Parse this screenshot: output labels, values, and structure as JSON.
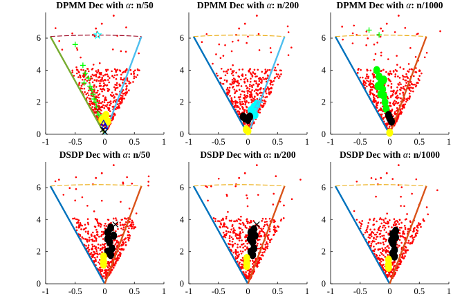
{
  "figure": {
    "layout": "2x3",
    "description_colors": {
      "left_boundary": "#0072BD",
      "right_boundary_orange": "#D95319",
      "right_boundary_cyan": "#4DBEEE",
      "top_arc_orange": "#EDB120",
      "top_arc_purple": "#A2142F",
      "green_boundary": "#77AC30",
      "data_points": "#FF0000",
      "cluster_yellow": "#FFFF00",
      "cluster_black": "#000000",
      "cluster_green": "#00FF00",
      "cluster_cyan": "#00FFFF"
    }
  },
  "chart_data": [
    {
      "type": "scatter",
      "title_prefix": "DPMM Dec with ",
      "title_symbol": "α",
      "title_suffix": ": n/50",
      "xlim": [
        -1,
        1
      ],
      "ylim": [
        0,
        7.6
      ],
      "xticks": [
        -1,
        -0.5,
        0,
        0.5,
        1
      ],
      "xtick_labels": [
        "-1",
        "-0.5",
        "0",
        "0.5",
        "1"
      ],
      "yticks": [
        0,
        2,
        4,
        6
      ],
      "ytick_labels": [
        "0",
        "2",
        "4",
        "6"
      ],
      "cone": {
        "left": [
          -0.92,
          6.1
        ],
        "right": [
          0.62,
          6.1
        ],
        "left_color": "#77AC30",
        "right_color": "#4DBEEE",
        "arc_color": "#A2142F"
      },
      "cluster_sets": [
        {
          "marker": "+",
          "color": "#00FF00",
          "points": [
            [
              -0.5,
              5.6
            ],
            [
              -0.37,
              4.3
            ],
            [
              -0.33,
              3.8
            ],
            [
              -0.28,
              3.5
            ],
            [
              -0.35,
              3.2
            ],
            [
              -0.25,
              3.0
            ],
            [
              -0.22,
              2.8
            ],
            [
              -0.2,
              2.5
            ],
            [
              -0.18,
              2.2
            ],
            [
              -0.15,
              2.0
            ],
            [
              -0.14,
              1.7
            ],
            [
              -0.12,
              1.4
            ],
            [
              -0.1,
              1.2
            ]
          ]
        },
        {
          "marker": "*",
          "color": "#00FFFF",
          "points": [
            [
              -0.12,
              6.2
            ]
          ]
        },
        {
          "marker": "x",
          "color": "#CC0000",
          "points": [
            [
              -0.12,
              1.5
            ]
          ]
        },
        {
          "marker": "blob",
          "color": "#FFFF00",
          "points": [
            [
              -0.02,
              1.0
            ],
            [
              0.02,
              1.2
            ],
            [
              -0.05,
              0.9
            ],
            [
              0.05,
              0.8
            ]
          ]
        },
        {
          "marker": "^",
          "color": "#0000CC",
          "points": [
            [
              -0.02,
              0.7
            ],
            [
              0.0,
              0.5
            ]
          ]
        },
        {
          "marker": "x",
          "color": "#000000",
          "points": [
            [
              -0.03,
              0.3
            ],
            [
              0.0,
              0.15
            ]
          ]
        }
      ]
    },
    {
      "type": "scatter",
      "title_prefix": "DPMM Dec with ",
      "title_symbol": "α",
      "title_suffix": ": n/200",
      "xlim": [
        -1,
        1
      ],
      "ylim": [
        0,
        7.6
      ],
      "xticks": [
        -1,
        -0.5,
        0,
        0.5,
        1
      ],
      "xtick_labels": [
        "-1",
        "-0.5",
        "0",
        "0.5",
        "1"
      ],
      "yticks": [
        0,
        2,
        4,
        6
      ],
      "ytick_labels": [
        "0",
        "2",
        "4",
        "6"
      ],
      "cone": {
        "left": [
          -0.92,
          6.1
        ],
        "right": [
          0.62,
          6.1
        ],
        "left_color": "#0072BD",
        "right_color": "#4DBEEE",
        "arc_color": "#EDB120"
      },
      "cluster_sets": [
        {
          "marker": "blob",
          "color": "#00FFFF",
          "points": [
            [
              0.05,
              1.5
            ],
            [
              0.1,
              1.7
            ],
            [
              0.15,
              1.9
            ],
            [
              0.08,
              1.3
            ],
            [
              0.12,
              1.2
            ]
          ]
        },
        {
          "marker": "^",
          "color": "#4DBEEE",
          "points": [
            [
              0.2,
              2.1
            ],
            [
              0.16,
              1.8
            ]
          ]
        },
        {
          "marker": "blob",
          "color": "#000000",
          "points": [
            [
              -0.05,
              1.0
            ],
            [
              0.0,
              0.9
            ],
            [
              -0.08,
              1.1
            ],
            [
              0.03,
              1.1
            ]
          ]
        },
        {
          "marker": "blob",
          "color": "#FFFF00",
          "points": [
            [
              -0.03,
              0.3
            ],
            [
              0.0,
              0.2
            ]
          ]
        }
      ]
    },
    {
      "type": "scatter",
      "title_prefix": "DPMM Dec with ",
      "title_symbol": "α",
      "title_suffix": ": n/1000",
      "xlim": [
        -1,
        1
      ],
      "ylim": [
        0,
        7.6
      ],
      "xticks": [
        -1,
        -0.5,
        0,
        0.5,
        1
      ],
      "xtick_labels": [
        "-1",
        "-0.5",
        "0",
        "0.5",
        "1"
      ],
      "yticks": [
        0,
        2,
        4,
        6
      ],
      "ytick_labels": [
        "0",
        "2",
        "4",
        "6"
      ],
      "cone": {
        "left": [
          -0.92,
          6.1
        ],
        "right": [
          0.62,
          6.1
        ],
        "left_color": "#0072BD",
        "right_color": "#D95319",
        "arc_color": "#EDB120"
      },
      "cluster_sets": [
        {
          "marker": "+",
          "color": "#00FF00",
          "points": [
            [
              -0.35,
              6.5
            ],
            [
              -0.18,
              6.2
            ]
          ]
        },
        {
          "marker": "blob",
          "color": "#00FF00",
          "points": [
            [
              -0.22,
              4.0
            ],
            [
              -0.18,
              3.6
            ],
            [
              -0.15,
              3.2
            ],
            [
              -0.12,
              2.8
            ],
            [
              -0.1,
              2.4
            ],
            [
              -0.08,
              2.0
            ],
            [
              -0.06,
              1.6
            ],
            [
              -0.15,
              2.5
            ],
            [
              -0.2,
              3.0
            ],
            [
              -0.1,
              3.4
            ]
          ]
        },
        {
          "marker": "blob",
          "color": "#000000",
          "points": [
            [
              0.0,
              1.0
            ],
            [
              0.03,
              0.8
            ],
            [
              -0.02,
              1.2
            ]
          ]
        },
        {
          "marker": "blob",
          "color": "#FFFF00",
          "points": [
            [
              0.0,
              0.1
            ]
          ]
        }
      ]
    },
    {
      "type": "scatter",
      "title_prefix": "DSDP Dec with ",
      "title_symbol": "α",
      "title_suffix": ": n/50",
      "xlim": [
        -1,
        1
      ],
      "ylim": [
        0,
        7.6
      ],
      "xticks": [
        -1,
        -0.5,
        0,
        0.5,
        1
      ],
      "xtick_labels": [
        "-1",
        "-0.5",
        "0",
        "0.5",
        "1"
      ],
      "yticks": [
        0,
        2,
        4,
        6
      ],
      "ytick_labels": [
        "0",
        "2",
        "4",
        "6"
      ],
      "cone": {
        "left": [
          -0.92,
          6.1
        ],
        "right": [
          0.62,
          6.1
        ],
        "left_color": "#0072BD",
        "right_color": "#D95319",
        "arc_color": "#EDB120"
      },
      "cluster_sets": [
        {
          "marker": "blob",
          "color": "#000000",
          "points": [
            [
              0.05,
              3.2
            ],
            [
              0.1,
              3.5
            ],
            [
              0.15,
              3.0
            ],
            [
              0.08,
              2.6
            ],
            [
              0.12,
              2.2
            ],
            [
              0.05,
              2.0
            ],
            [
              0.1,
              1.8
            ],
            [
              0.05,
              2.8
            ]
          ]
        },
        {
          "marker": "x",
          "color": "#000000",
          "points": [
            [
              0.18,
              3.7
            ]
          ]
        },
        {
          "marker": "blob",
          "color": "#FFFF00",
          "points": [
            [
              -0.02,
              1.7
            ],
            [
              -0.02,
              1.4
            ],
            [
              -0.02,
              1.2
            ]
          ]
        }
      ]
    },
    {
      "type": "scatter",
      "title_prefix": "DSDP Dec with ",
      "title_symbol": "α",
      "title_suffix": ": n/200",
      "xlim": [
        -1,
        1
      ],
      "ylim": [
        0,
        7.6
      ],
      "xticks": [
        -1,
        -0.5,
        0,
        0.5,
        1
      ],
      "xtick_labels": [
        "-1",
        "-0.5",
        "0",
        "0.5",
        "1"
      ],
      "yticks": [
        0,
        2,
        4,
        6
      ],
      "ytick_labels": [
        "0",
        "2",
        "4",
        "6"
      ],
      "cone": {
        "left": [
          -0.92,
          6.1
        ],
        "right": [
          0.62,
          6.1
        ],
        "left_color": "#0072BD",
        "right_color": "#D95319",
        "arc_color": "#EDB120"
      },
      "cluster_sets": [
        {
          "marker": "blob",
          "color": "#000000",
          "points": [
            [
              0.05,
              3.2
            ],
            [
              0.1,
              3.4
            ],
            [
              0.12,
              3.0
            ],
            [
              0.08,
              2.6
            ],
            [
              0.1,
              2.2
            ],
            [
              0.05,
              2.0
            ],
            [
              0.08,
              1.8
            ],
            [
              0.04,
              2.8
            ]
          ]
        },
        {
          "marker": "x",
          "color": "#000000",
          "points": [
            [
              0.15,
              3.7
            ]
          ]
        },
        {
          "marker": "blob",
          "color": "#FFFF00",
          "points": [
            [
              -0.02,
              1.6
            ],
            [
              -0.02,
              1.3
            ],
            [
              -0.02,
              1.1
            ]
          ]
        }
      ]
    },
    {
      "type": "scatter",
      "title_prefix": "DSDP Dec with ",
      "title_symbol": "α",
      "title_suffix": ": n/1000",
      "xlim": [
        -1,
        1
      ],
      "ylim": [
        0,
        7.6
      ],
      "xticks": [
        -1,
        -0.5,
        0,
        0.5,
        1
      ],
      "xtick_labels": [
        "-1",
        "-0.5",
        "0",
        "0.5",
        "1"
      ],
      "yticks": [
        0,
        2,
        4,
        6
      ],
      "ytick_labels": [
        "0",
        "2",
        "4",
        "6"
      ],
      "cone": {
        "left": [
          -0.92,
          6.1
        ],
        "right": [
          0.62,
          6.1
        ],
        "left_color": "#0072BD",
        "right_color": "#D95319",
        "arc_color": "#EDB120"
      },
      "cluster_sets": [
        {
          "marker": "blob",
          "color": "#000000",
          "points": [
            [
              0.05,
              3.1
            ],
            [
              0.1,
              3.3
            ],
            [
              0.1,
              2.9
            ],
            [
              0.06,
              2.5
            ],
            [
              0.08,
              2.1
            ],
            [
              0.05,
              1.9
            ],
            [
              0.08,
              1.7
            ],
            [
              0.03,
              2.7
            ]
          ]
        },
        {
          "marker": "blob",
          "color": "#FFFF00",
          "points": [
            [
              -0.02,
              1.5
            ],
            [
              -0.02,
              1.2
            ],
            [
              -0.02,
              1.0
            ]
          ]
        }
      ]
    }
  ]
}
